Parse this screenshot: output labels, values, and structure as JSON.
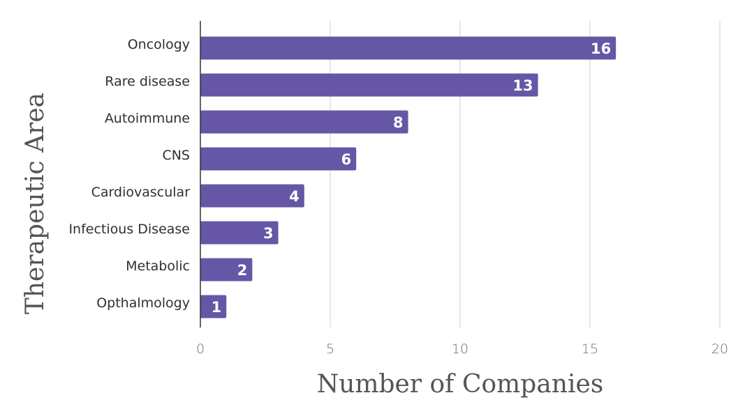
{
  "chart_data": {
    "type": "bar",
    "orientation": "horizontal",
    "categories": [
      "Oncology",
      "Rare disease",
      "Autoimmune",
      "CNS",
      "Cardiovascular",
      "Infectious Disease",
      "Metabolic",
      "Opthalmology"
    ],
    "values": [
      16,
      13,
      8,
      6,
      4,
      3,
      2,
      1
    ],
    "data_labels": [
      "16",
      "13",
      "8",
      "6",
      "4",
      "3",
      "2",
      "1"
    ],
    "xlabel": "Number of Companies",
    "ylabel": "Therapeutic Area",
    "xlim": [
      0,
      20
    ],
    "xticks": [
      0,
      5,
      10,
      15,
      20
    ],
    "xtick_labels": [
      "0",
      "5",
      "10",
      "15",
      "20"
    ],
    "grid": "vertical",
    "legend": "none",
    "colors": {
      "bar": "#6656a6",
      "grid": "#d7d7d7",
      "axis": "#333333",
      "data_label": "#ffffff"
    }
  }
}
